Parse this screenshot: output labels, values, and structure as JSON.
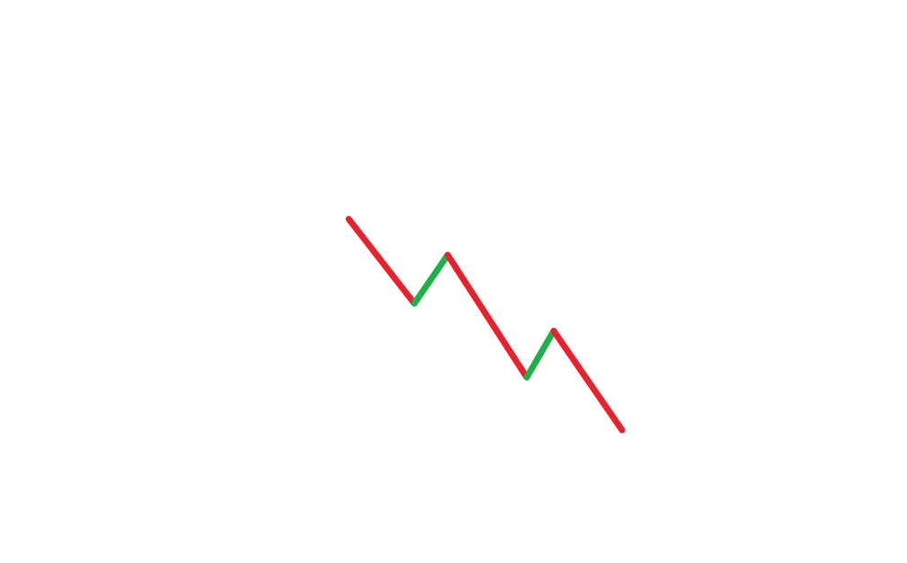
{
  "diagram": {
    "type": "zigzag-trend",
    "direction": "down",
    "colors": {
      "down_leg": "#e5222d",
      "up_leg": "#1fb04b",
      "background": "#ffffff"
    },
    "points": [
      {
        "x": 0,
        "y": 100
      },
      {
        "x": 1,
        "y": 60
      },
      {
        "x": 2,
        "y": 83
      },
      {
        "x": 3,
        "y": 25
      },
      {
        "x": 4,
        "y": 47
      },
      {
        "x": 5,
        "y": 0
      }
    ],
    "legs": [
      "down",
      "up",
      "down",
      "up",
      "down"
    ]
  }
}
